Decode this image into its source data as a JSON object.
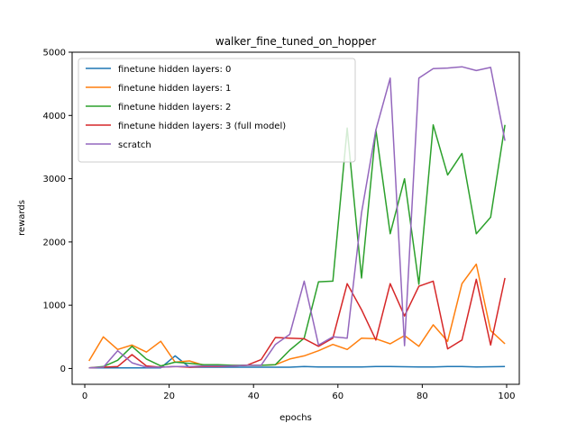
{
  "chart_data": {
    "type": "line",
    "title": "walker_fine_tuned_on_hopper",
    "xlabel": "epochs",
    "ylabel": "rewards",
    "xlim": [
      -3,
      103
    ],
    "ylim": [
      -250,
      5000
    ],
    "xticks": [
      0,
      20,
      40,
      60,
      80,
      100
    ],
    "yticks": [
      0,
      1000,
      2000,
      3000,
      4000,
      5000
    ],
    "grid": false,
    "legend_position": "upper left",
    "x": [
      1,
      4.4,
      7.8,
      11.2,
      14.6,
      18,
      21.4,
      24.8,
      28.2,
      31.6,
      35,
      38.4,
      41.8,
      45.2,
      48.6,
      52,
      55.4,
      58.8,
      62.2,
      65.6,
      69,
      72.4,
      75.8,
      79.2,
      82.6,
      86,
      89.4,
      92.8,
      96.2,
      99.6
    ],
    "series": [
      {
        "name": "finetune hidden layers: 0",
        "color": "#1f77b4",
        "values": [
          10,
          10,
          10,
          10,
          10,
          10,
          200,
          20,
          20,
          20,
          20,
          20,
          20,
          20,
          20,
          30,
          25,
          25,
          25,
          25,
          30,
          30,
          28,
          25,
          25,
          30,
          30,
          25,
          28,
          30
        ]
      },
      {
        "name": "finetune hidden layers: 1",
        "color": "#ff7f0e",
        "values": [
          120,
          500,
          300,
          370,
          260,
          430,
          100,
          120,
          50,
          40,
          40,
          50,
          50,
          60,
          150,
          200,
          280,
          380,
          300,
          480,
          470,
          390,
          520,
          350,
          690,
          430,
          1340,
          1650,
          600,
          390
        ]
      },
      {
        "name": "finetune hidden layers: 2",
        "color": "#2ca02c",
        "values": [
          10,
          30,
          130,
          350,
          150,
          40,
          100,
          80,
          60,
          60,
          50,
          50,
          50,
          60,
          290,
          480,
          1370,
          1380,
          3800,
          1430,
          3770,
          2130,
          3000,
          1330,
          3850,
          3060,
          3400,
          2130,
          2390,
          3850
        ]
      },
      {
        "name": "finetune hidden layers: 3 (full model)",
        "color": "#d62728",
        "values": [
          10,
          20,
          30,
          220,
          40,
          20,
          30,
          20,
          30,
          30,
          40,
          50,
          140,
          490,
          480,
          470,
          350,
          480,
          1340,
          930,
          450,
          1340,
          830,
          1300,
          1380,
          310,
          450,
          1410,
          370,
          1430
        ]
      },
      {
        "name": "scratch",
        "color": "#9467bd",
        "values": [
          10,
          20,
          280,
          90,
          20,
          20,
          30,
          30,
          40,
          40,
          40,
          50,
          50,
          380,
          540,
          1380,
          370,
          500,
          480,
          2460,
          3770,
          4590,
          360,
          4590,
          4740,
          4750,
          4770,
          4710,
          4760,
          3600
        ]
      }
    ]
  }
}
